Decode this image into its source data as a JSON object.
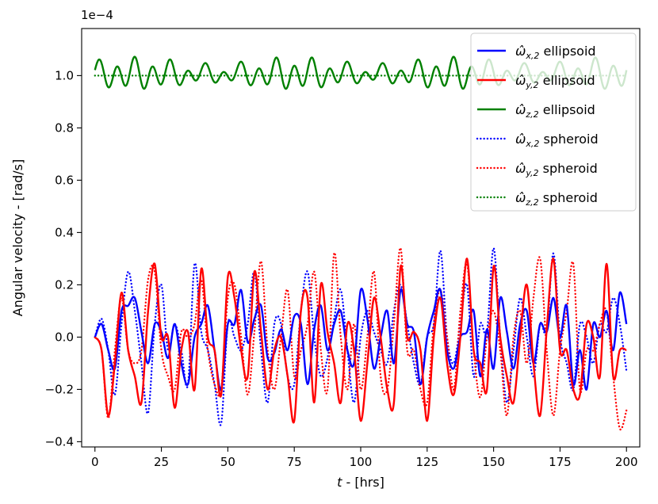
{
  "chart_data": {
    "type": "line",
    "xlabel": "t - [hrs]",
    "ylabel": "Angular velocity - [rad/s]",
    "offset_text": "1e−4",
    "scale": 0.0001,
    "xlim": [
      -5,
      205
    ],
    "ylim": [
      -0.42,
      1.18
    ],
    "x_ticks": [
      0,
      25,
      50,
      75,
      100,
      125,
      150,
      175,
      200
    ],
    "y_ticks": [
      -0.4,
      -0.2,
      0.0,
      0.2,
      0.4,
      0.6,
      0.8,
      1.0
    ],
    "x_tick_labels": [
      "0",
      "25",
      "50",
      "75",
      "100",
      "125",
      "150",
      "175",
      "200"
    ],
    "y_tick_labels": [
      "−0.4",
      "−0.2",
      "0.0",
      "0.2",
      "0.4",
      "0.6",
      "0.8",
      "1.0"
    ],
    "grid": false,
    "legend_position": "top-right",
    "series": [
      {
        "name": "ω̂x,2 ellipsoid",
        "color": "#0000ff",
        "style": "solid",
        "x": [
          0,
          2.5,
          5,
          7.5,
          10,
          12.5,
          15,
          17.5,
          20,
          22.5,
          25,
          27.5,
          30,
          32.5,
          35,
          37.5,
          40,
          42.5,
          45,
          47.5,
          50,
          52.5,
          55,
          57.5,
          60,
          62.5,
          65,
          67.5,
          70,
          72.5,
          75,
          77.5,
          80,
          82.5,
          85,
          87.5,
          90,
          92.5,
          95,
          97.5,
          100,
          102.5,
          105,
          107.5,
          110,
          112.5,
          115,
          117.5,
          120,
          122.5,
          125,
          127.5,
          130,
          132.5,
          135,
          137.5,
          140,
          142.5,
          145,
          147.5,
          150,
          152.5,
          155,
          157.5,
          160,
          162.5,
          165,
          167.5,
          170,
          172.5,
          175,
          177.5,
          180,
          182.5,
          185,
          187.5,
          190,
          192.5,
          195,
          197.5,
          200
        ],
        "values": [
          0.0,
          0.05,
          -0.05,
          -0.12,
          0.1,
          0.12,
          0.15,
          0.02,
          -0.1,
          0.05,
          0.02,
          -0.08,
          0.05,
          -0.1,
          -0.18,
          0.0,
          0.05,
          0.12,
          -0.05,
          -0.2,
          0.05,
          0.05,
          0.18,
          -0.02,
          0.07,
          0.12,
          -0.08,
          -0.06,
          0.03,
          -0.05,
          0.08,
          0.05,
          -0.18,
          0.03,
          0.12,
          -0.05,
          0.05,
          0.1,
          -0.05,
          -0.1,
          0.18,
          0.07,
          -0.12,
          0.0,
          0.1,
          -0.1,
          0.18,
          0.05,
          0.02,
          -0.18,
          0.0,
          0.1,
          0.18,
          -0.05,
          -0.12,
          0.0,
          0.02,
          0.1,
          -0.15,
          0.03,
          -0.12,
          0.15,
          0.02,
          -0.12,
          0.05,
          0.1,
          -0.1,
          0.05,
          0.02,
          0.15,
          0.0,
          0.12,
          -0.18,
          -0.05,
          -0.2,
          0.05,
          0.0,
          0.1,
          -0.05,
          0.17,
          0.05
        ]
      },
      {
        "name": "ω̂y,2 ellipsoid",
        "color": "#ff0000",
        "style": "solid",
        "x": [
          0,
          2.5,
          5,
          7.5,
          10,
          12.5,
          15,
          17.5,
          20,
          22.5,
          25,
          27.5,
          30,
          32.5,
          35,
          37.5,
          40,
          42.5,
          45,
          47.5,
          50,
          52.5,
          55,
          57.5,
          60,
          62.5,
          65,
          67.5,
          70,
          72.5,
          75,
          77.5,
          80,
          82.5,
          85,
          87.5,
          90,
          92.5,
          95,
          97.5,
          100,
          102.5,
          105,
          107.5,
          110,
          112.5,
          115,
          117.5,
          120,
          122.5,
          125,
          127.5,
          130,
          132.5,
          135,
          137.5,
          140,
          142.5,
          145,
          147.5,
          150,
          152.5,
          155,
          157.5,
          160,
          162.5,
          165,
          167.5,
          170,
          172.5,
          175,
          177.5,
          180,
          182.5,
          185,
          187.5,
          190,
          192.5,
          195,
          197.5,
          200
        ],
        "values": [
          0.0,
          -0.05,
          -0.3,
          -0.1,
          0.17,
          -0.05,
          -0.15,
          -0.25,
          0.1,
          0.28,
          0.0,
          0.0,
          -0.27,
          -0.05,
          0.02,
          -0.2,
          0.26,
          0.0,
          -0.05,
          -0.22,
          0.23,
          0.15,
          -0.05,
          -0.15,
          0.25,
          0.02,
          -0.2,
          -0.05,
          0.0,
          -0.15,
          -0.32,
          0.1,
          0.15,
          -0.25,
          0.2,
          0.02,
          -0.1,
          -0.25,
          0.05,
          -0.05,
          -0.32,
          -0.1,
          0.15,
          0.0,
          -0.2,
          -0.25,
          0.27,
          0.0,
          0.02,
          -0.05,
          -0.32,
          0.0,
          0.15,
          -0.1,
          -0.22,
          0.0,
          0.3,
          -0.05,
          -0.1,
          -0.2,
          0.27,
          0.0,
          -0.15,
          -0.25,
          0.0,
          0.2,
          -0.1,
          -0.3,
          0.03,
          0.3,
          -0.05,
          -0.05,
          -0.2,
          -0.22,
          0.05,
          0.0,
          -0.15,
          0.28,
          -0.15,
          -0.05,
          -0.05
        ]
      },
      {
        "name": "ω̂z,2 ellipsoid",
        "color": "#008000",
        "style": "solid",
        "baseline": 1.005,
        "amplitude": 0.05,
        "cycles": 30,
        "x": [
          0,
          200
        ],
        "values": [
          1.005,
          1.005
        ]
      },
      {
        "name": "ω̂x,2 spheroid",
        "color": "#0000ff",
        "style": "dotted",
        "x": [
          0,
          2.5,
          5,
          7.5,
          10,
          12.5,
          15,
          17.5,
          20,
          22.5,
          25,
          27.5,
          30,
          32.5,
          35,
          37.5,
          40,
          42.5,
          45,
          47.5,
          50,
          52.5,
          55,
          57.5,
          60,
          62.5,
          65,
          67.5,
          70,
          72.5,
          75,
          77.5,
          80,
          82.5,
          85,
          87.5,
          90,
          92.5,
          95,
          97.5,
          100,
          102.5,
          105,
          107.5,
          110,
          112.5,
          115,
          117.5,
          120,
          122.5,
          125,
          127.5,
          130,
          132.5,
          135,
          137.5,
          140,
          142.5,
          145,
          147.5,
          150,
          152.5,
          155,
          157.5,
          160,
          162.5,
          165,
          167.5,
          170,
          172.5,
          175,
          177.5,
          180,
          182.5,
          185,
          187.5,
          190,
          192.5,
          195,
          197.5,
          200
        ],
        "values": [
          0.0,
          0.07,
          -0.05,
          -0.22,
          0.05,
          0.25,
          0.1,
          -0.1,
          -0.29,
          0.05,
          0.2,
          -0.05,
          0.05,
          -0.05,
          -0.18,
          0.28,
          0.02,
          -0.05,
          -0.18,
          -0.33,
          0.05,
          0.0,
          -0.05,
          0.05,
          0.25,
          -0.05,
          -0.25,
          0.05,
          0.05,
          -0.15,
          -0.18,
          0.1,
          0.25,
          0.0,
          -0.15,
          -0.08,
          0.07,
          0.18,
          -0.05,
          -0.25,
          0.0,
          0.1,
          0.02,
          -0.05,
          -0.1,
          0.1,
          0.2,
          0.05,
          -0.1,
          -0.18,
          0.0,
          0.05,
          0.33,
          0.0,
          -0.1,
          0.05,
          0.2,
          -0.15,
          0.05,
          0.02,
          0.34,
          0.0,
          -0.25,
          -0.05,
          0.15,
          0.0,
          -0.15,
          0.05,
          0.02,
          0.32,
          0.0,
          -0.1,
          -0.2,
          0.05,
          0.0,
          -0.1,
          0.05,
          0.02,
          0.15,
          0.05,
          -0.13
        ]
      },
      {
        "name": "ω̂y,2 spheroid",
        "color": "#ff0000",
        "style": "dotted",
        "x": [
          0,
          2.5,
          5,
          7.5,
          10,
          12.5,
          15,
          17.5,
          20,
          22.5,
          25,
          27.5,
          30,
          32.5,
          35,
          37.5,
          40,
          42.5,
          45,
          47.5,
          50,
          52.5,
          55,
          57.5,
          60,
          62.5,
          65,
          67.5,
          70,
          72.5,
          75,
          77.5,
          80,
          82.5,
          85,
          87.5,
          90,
          92.5,
          95,
          97.5,
          100,
          102.5,
          105,
          107.5,
          110,
          112.5,
          115,
          117.5,
          120,
          122.5,
          125,
          127.5,
          130,
          132.5,
          135,
          137.5,
          140,
          142.5,
          145,
          147.5,
          150,
          152.5,
          155,
          157.5,
          160,
          162.5,
          165,
          167.5,
          170,
          172.5,
          175,
          177.5,
          180,
          182.5,
          185,
          187.5,
          190,
          192.5,
          195,
          197.5,
          200
        ],
        "values": [
          0.0,
          -0.05,
          -0.31,
          -0.05,
          0.15,
          -0.05,
          -0.1,
          -0.05,
          0.22,
          0.25,
          -0.05,
          -0.15,
          -0.2,
          0.02,
          0.0,
          0.05,
          0.22,
          -0.05,
          -0.18,
          -0.2,
          0.15,
          0.2,
          0.0,
          -0.22,
          0.02,
          0.29,
          -0.05,
          -0.2,
          0.0,
          0.18,
          -0.15,
          -0.05,
          0.05,
          0.25,
          -0.05,
          -0.2,
          0.32,
          0.0,
          -0.2,
          0.05,
          -0.2,
          0.0,
          0.25,
          -0.15,
          -0.2,
          0.05,
          0.34,
          -0.05,
          -0.05,
          -0.2,
          -0.25,
          0.05,
          0.18,
          0.0,
          -0.2,
          0.1,
          0.28,
          -0.05,
          -0.23,
          0.0,
          0.1,
          -0.05,
          -0.3,
          0.0,
          0.1,
          -0.1,
          0.15,
          0.3,
          -0.05,
          -0.3,
          -0.05,
          0.1,
          0.28,
          -0.2,
          -0.05,
          -0.05,
          0.05,
          0.1,
          -0.15,
          -0.35,
          -0.28
        ]
      },
      {
        "name": "ω̂z,2 spheroid",
        "color": "#008000",
        "style": "dotted",
        "x": [
          0,
          200
        ],
        "values": [
          1.0,
          1.0
        ]
      }
    ]
  },
  "legend": {
    "entries": [
      {
        "symbol": "ω̂",
        "sub": "x,2",
        "suffix": " ellipsoid"
      },
      {
        "symbol": "ω̂",
        "sub": "y,2",
        "suffix": " ellipsoid"
      },
      {
        "symbol": "ω̂",
        "sub": "z,2",
        "suffix": " ellipsoid"
      },
      {
        "symbol": "ω̂",
        "sub": "x,2",
        "suffix": " spheroid"
      },
      {
        "symbol": "ω̂",
        "sub": "y,2",
        "suffix": " spheroid"
      },
      {
        "symbol": "ω̂",
        "sub": "z,2",
        "suffix": " spheroid"
      }
    ]
  }
}
